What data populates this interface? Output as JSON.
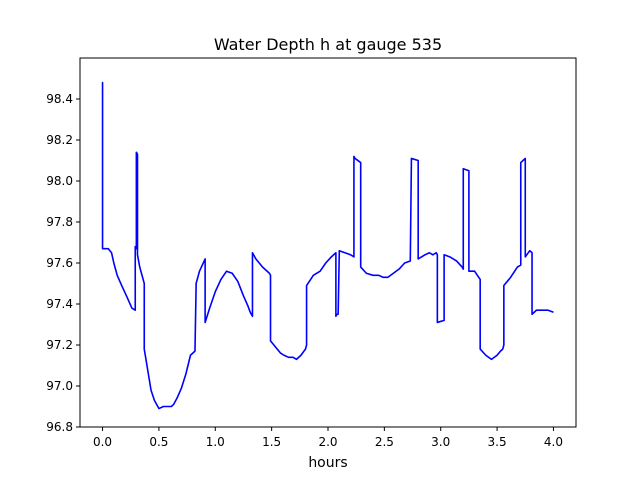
{
  "chart_data": {
    "type": "line",
    "title": "Water Depth h at gauge 535",
    "xlabel": "hours",
    "ylabel": "",
    "xlim": [
      -0.2,
      4.2
    ],
    "ylim": [
      96.8,
      98.6
    ],
    "x_ticks": [
      0.0,
      0.5,
      1.0,
      1.5,
      2.0,
      2.5,
      3.0,
      3.5,
      4.0
    ],
    "x_tick_labels": [
      "0.0",
      "0.5",
      "1.0",
      "1.5",
      "2.0",
      "2.5",
      "3.0",
      "3.5",
      "4.0"
    ],
    "y_ticks": [
      96.8,
      97.0,
      97.2,
      97.4,
      97.6,
      97.8,
      98.0,
      98.2,
      98.4
    ],
    "y_tick_labels": [
      "96.8",
      "97.0",
      "97.2",
      "97.4",
      "97.6",
      "97.8",
      "98.0",
      "98.2",
      "98.4"
    ],
    "grid": false,
    "line_color": "#0000ff",
    "series": [
      {
        "x": [
          0.0,
          0.0,
          0.0,
          0.0,
          0.05,
          0.08,
          0.1,
          0.13,
          0.17,
          0.22,
          0.26,
          0.29,
          0.29,
          0.3,
          0.3,
          0.31,
          0.31,
          0.33,
          0.37,
          0.37,
          0.4,
          0.43,
          0.46,
          0.5,
          0.54,
          0.58,
          0.61,
          0.63,
          0.66,
          0.7,
          0.74,
          0.78,
          0.82,
          0.83,
          0.83,
          0.86,
          0.91,
          0.91,
          0.95,
          1.0,
          1.05,
          1.1,
          1.15,
          1.2,
          1.25,
          1.29,
          1.31,
          1.33,
          1.33,
          1.36,
          1.42,
          1.48,
          1.49,
          1.49,
          1.55,
          1.58,
          1.61,
          1.65,
          1.69,
          1.72,
          1.76,
          1.8,
          1.81,
          1.81,
          1.87,
          1.93,
          1.98,
          2.03,
          2.07,
          2.07,
          2.08,
          2.09,
          2.1,
          2.1,
          2.15,
          2.2,
          2.23,
          2.23,
          2.24,
          2.29,
          2.29,
          2.34,
          2.4,
          2.45,
          2.49,
          2.53,
          2.58,
          2.63,
          2.68,
          2.73,
          2.74,
          2.74,
          2.8,
          2.8,
          2.86,
          2.9,
          2.93,
          2.96,
          2.97,
          2.97,
          3.03,
          3.03,
          3.08,
          3.14,
          3.19,
          3.2,
          3.2,
          3.25,
          3.25,
          3.3,
          3.35,
          3.35,
          3.4,
          3.45,
          3.5,
          3.53,
          3.55,
          3.56,
          3.56,
          3.62,
          3.68,
          3.71,
          3.71,
          3.75,
          3.75,
          3.79,
          3.81,
          3.81,
          3.85,
          3.9,
          3.95,
          4.0
        ],
        "y": [
          97.98,
          98.48,
          97.67,
          97.67,
          97.67,
          97.65,
          97.6,
          97.54,
          97.49,
          97.43,
          97.38,
          97.37,
          97.68,
          97.67,
          98.14,
          98.13,
          97.64,
          97.58,
          97.5,
          97.18,
          97.08,
          96.98,
          96.93,
          96.89,
          96.9,
          96.9,
          96.9,
          96.91,
          96.94,
          96.99,
          97.06,
          97.15,
          97.17,
          97.49,
          97.5,
          97.56,
          97.62,
          97.31,
          97.38,
          97.46,
          97.52,
          97.56,
          97.55,
          97.51,
          97.44,
          97.39,
          97.36,
          97.34,
          97.65,
          97.62,
          97.58,
          97.55,
          97.54,
          97.22,
          97.18,
          97.16,
          97.15,
          97.14,
          97.14,
          97.13,
          97.15,
          97.18,
          97.2,
          97.49,
          97.54,
          97.56,
          97.6,
          97.63,
          97.65,
          97.34,
          97.35,
          97.35,
          97.65,
          97.66,
          97.65,
          97.64,
          97.63,
          98.12,
          98.11,
          98.09,
          97.58,
          97.55,
          97.54,
          97.54,
          97.53,
          97.53,
          97.55,
          97.57,
          97.6,
          97.61,
          98.11,
          98.11,
          98.1,
          97.62,
          97.64,
          97.65,
          97.64,
          97.65,
          97.64,
          97.31,
          97.32,
          97.64,
          97.63,
          97.61,
          97.58,
          97.57,
          98.06,
          98.05,
          97.56,
          97.56,
          97.52,
          97.18,
          97.15,
          97.13,
          97.15,
          97.17,
          97.18,
          97.2,
          97.49,
          97.53,
          97.58,
          97.59,
          98.09,
          98.11,
          97.63,
          97.66,
          97.65,
          97.35,
          97.37,
          97.37,
          97.37,
          97.36
        ]
      }
    ]
  }
}
